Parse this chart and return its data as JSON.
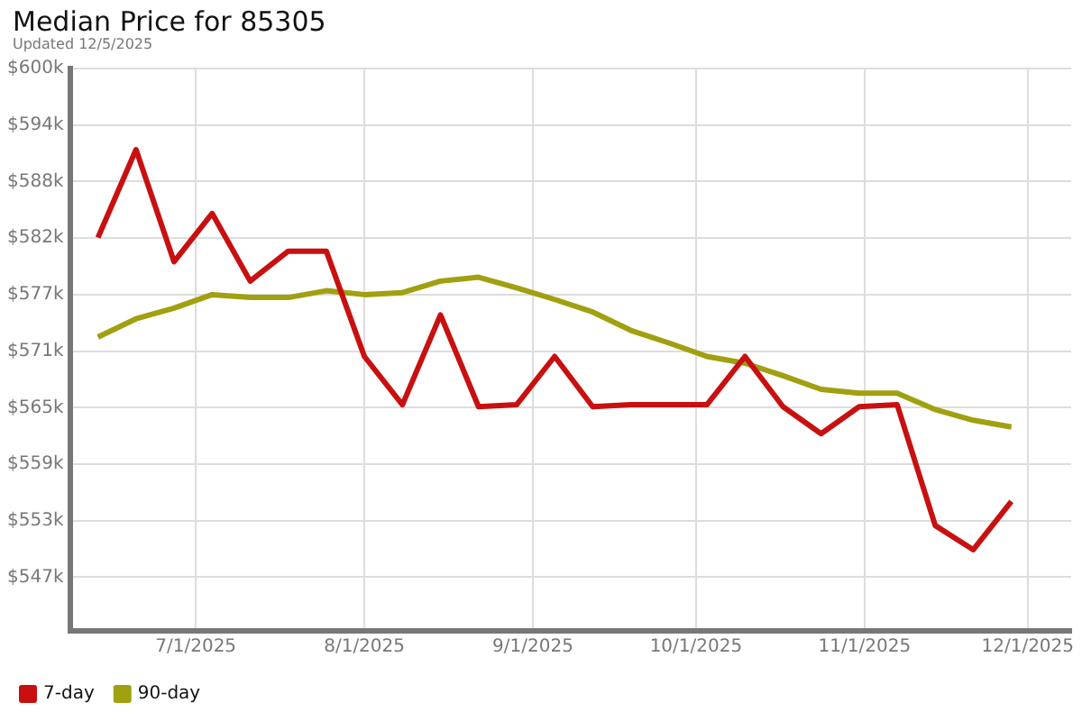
{
  "chart_data": {
    "type": "line",
    "title": "Median Price for 85305",
    "subtitle": "Updated 12/5/2025",
    "x": [
      "2025-06-13",
      "2025-06-20",
      "2025-06-27",
      "2025-07-04",
      "2025-07-11",
      "2025-07-18",
      "2025-07-25",
      "2025-08-01",
      "2025-08-08",
      "2025-08-15",
      "2025-08-22",
      "2025-08-29",
      "2025-09-05",
      "2025-09-12",
      "2025-09-19",
      "2025-09-26",
      "2025-10-03",
      "2025-10-10",
      "2025-10-17",
      "2025-10-24",
      "2025-10-31",
      "2025-11-07",
      "2025-11-14",
      "2025-11-21",
      "2025-11-28"
    ],
    "series": [
      {
        "name": "7-day",
        "color": "#c81010",
        "values": [
          582.4,
          591.5,
          579.9,
          584.9,
          577.9,
          581.0,
          581.0,
          570.1,
          565.1,
          574.4,
          564.9,
          565.1,
          570.1,
          564.9,
          565.1,
          565.1,
          565.1,
          570.1,
          564.9,
          562.1,
          564.9,
          565.1,
          552.6,
          550.1,
          555.1
        ]
      },
      {
        "name": "90-day",
        "color": "#a0a010",
        "values": [
          572.1,
          574.0,
          575.1,
          576.5,
          576.2,
          576.2,
          576.9,
          576.5,
          576.7,
          577.9,
          578.3,
          577.2,
          576.0,
          574.7,
          572.8,
          571.5,
          570.1,
          569.4,
          568.1,
          566.7,
          566.3,
          566.3,
          564.6,
          563.5,
          562.8
        ]
      }
    ],
    "xlim": [
      "2025-06-08",
      "2025-12-09"
    ],
    "xticks": [
      {
        "value": "2025-07-01",
        "label": "7/1/2025"
      },
      {
        "value": "2025-08-01",
        "label": "8/1/2025"
      },
      {
        "value": "2025-09-01",
        "label": "9/1/2025"
      },
      {
        "value": "2025-10-01",
        "label": "10/1/2025"
      },
      {
        "value": "2025-11-01",
        "label": "11/1/2025"
      },
      {
        "value": "2025-12-01",
        "label": "12/1/2025"
      }
    ],
    "ylim": [
      541.7,
      599.9
    ],
    "yticks": [
      {
        "value": 547.25,
        "label": "$547k"
      },
      {
        "value": 553.1,
        "label": "$553k"
      },
      {
        "value": 558.95,
        "label": "$559k"
      },
      {
        "value": 564.8,
        "label": "$565k"
      },
      {
        "value": 570.65,
        "label": "$571k"
      },
      {
        "value": 576.5,
        "label": "$577k"
      },
      {
        "value": 582.35,
        "label": "$582k"
      },
      {
        "value": 588.2,
        "label": "$588k"
      },
      {
        "value": 594.05,
        "label": "$594k"
      },
      {
        "value": 599.9,
        "label": "$600k"
      }
    ],
    "grid": true,
    "legend": "bottom left",
    "marker": "none",
    "line_style": "solid"
  }
}
